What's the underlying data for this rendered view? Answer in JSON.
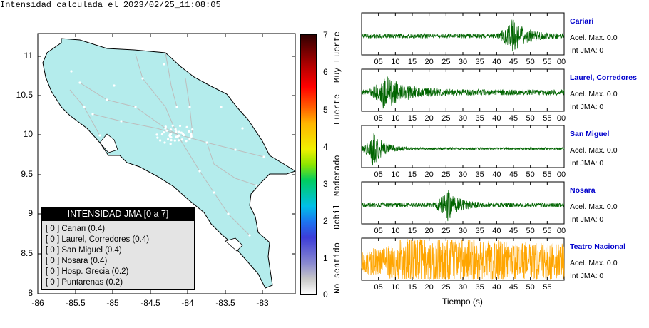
{
  "map": {
    "title": "Intensidad calculada el 2023/02/25_11:08:05",
    "yticks": [
      "11",
      "10.5",
      "10",
      "9.5",
      "9",
      "8.5",
      "8"
    ],
    "xticks": [
      "-86",
      "-85.5",
      "-85",
      "-84.5",
      "-84",
      "-83.5",
      "-83"
    ],
    "land_color": "#b4ecec",
    "legend": {
      "header": "INTENSIDAD JMA [0 a 7]",
      "rows": [
        "[ 0 ]  Cariari (0.4)",
        "[ 0 ]  Laurel, Corredores (0.4)",
        "[ 0 ]  San Miguel (0.4)",
        "[ 0 ]  Nosara (0.4)",
        "[ 0 ]  Hosp. Grecia (0.2)",
        "[ 0 ]  Puntarenas (0.2)"
      ]
    }
  },
  "colorbar": {
    "ticks": [
      "7",
      "6",
      "5",
      "4",
      "3",
      "2",
      "1",
      "0"
    ],
    "labels": [
      "Muy Fuerte",
      "Fuerte",
      "Moderado",
      "Debil",
      "No sentido"
    ]
  },
  "chart_data": {
    "type": "line",
    "xlabel": "Tiempo (s)",
    "tick_labels": [
      "05",
      "10",
      "15",
      "20",
      "25",
      "30",
      "35",
      "40",
      "45",
      "50",
      "55",
      "00"
    ],
    "last_tick_labels": [
      "05",
      "10",
      "15",
      "20",
      "25",
      "30",
      "35",
      "40",
      "45",
      "50",
      "55"
    ],
    "series": [
      {
        "name": "Cariari",
        "accel": "Acel. Max. 0.0",
        "int": "Int JMA: 0",
        "color": "#006400",
        "event_time": 44,
        "noise": 0.12,
        "peak": 1.0,
        "decay": 4
      },
      {
        "name": "Laurel, Corredores",
        "accel": "Acel. Max. 0.0",
        "int": "Int JMA: 0",
        "color": "#006400",
        "event_time": 6,
        "noise": 0.15,
        "peak": 0.9,
        "decay": 6
      },
      {
        "name": "San Miguel",
        "accel": "Acel. Max. 0.0",
        "int": "Int JMA: 0",
        "color": "#006400",
        "event_time": 3,
        "noise": 0.06,
        "peak": 1.0,
        "decay": 3
      },
      {
        "name": "Nosara",
        "accel": "Acel. Max. 0.0",
        "int": "Int JMA: 0",
        "color": "#006400",
        "event_time": 25,
        "noise": 0.12,
        "peak": 0.9,
        "decay": 3
      },
      {
        "name": "Teatro Nacional",
        "accel": "Acel. Max. 0.0",
        "int": "Int JMA: 0",
        "color": "#ffa500",
        "event_time": 10,
        "noise": 0.7,
        "peak": 0.8,
        "decay": 50
      }
    ]
  }
}
